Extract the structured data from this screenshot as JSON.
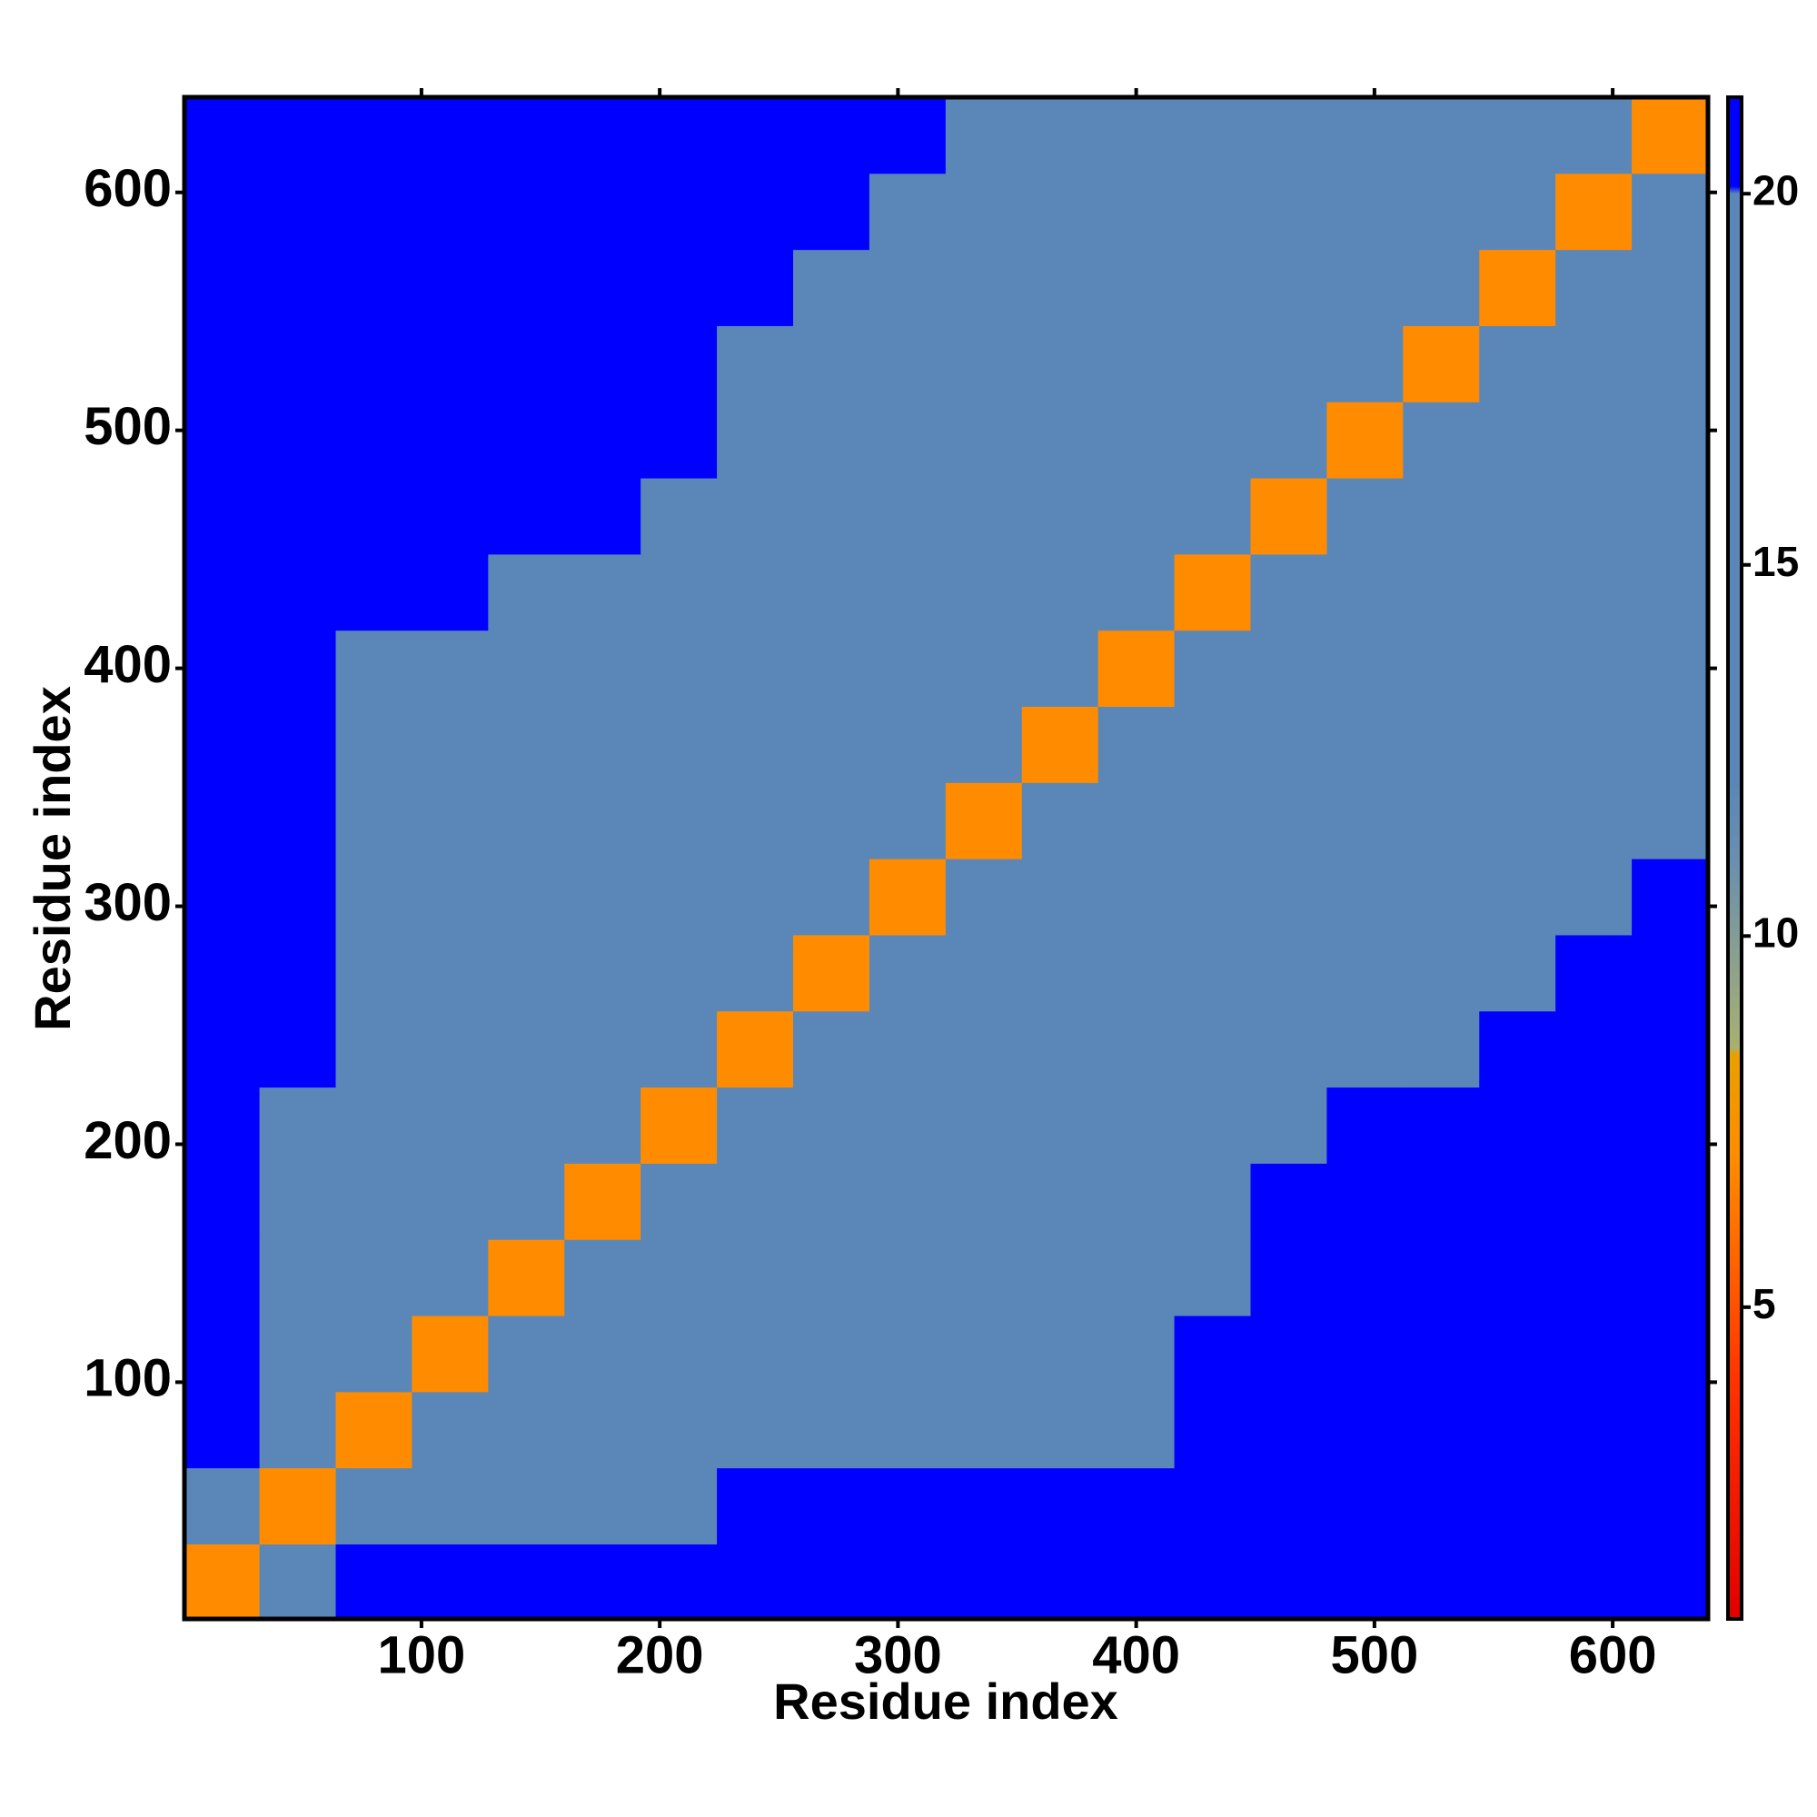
{
  "chart_data": {
    "type": "heatmap",
    "xlabel": "Residue index",
    "ylabel": "Residue index",
    "bins": [
      0,
      32,
      64,
      96,
      128,
      160,
      192,
      224,
      256,
      288,
      320,
      352,
      384,
      416,
      448,
      480,
      512,
      544,
      576,
      608,
      640
    ],
    "xlim": [
      0.5,
      640
    ],
    "ylim": [
      0.5,
      640
    ],
    "xticks": [
      100,
      200,
      300,
      400,
      500,
      600
    ],
    "yticks": [
      100,
      200,
      300,
      400,
      500,
      600
    ],
    "clim": [
      0.8,
      21.3
    ],
    "colorbar_ticks": [
      5,
      10,
      15,
      20
    ],
    "colorscale": [
      {
        "value": 0.8,
        "color": "#e00000"
      },
      {
        "value": 4,
        "color": "#ff3300"
      },
      {
        "value": 7,
        "color": "#ff8c00"
      },
      {
        "value": 8.4,
        "color": "#e8a000"
      },
      {
        "value": 8.5,
        "color": "#a8b070"
      },
      {
        "value": 11,
        "color": "#6a8fb0"
      },
      {
        "value": 12,
        "color": "#5b87b8"
      },
      {
        "value": 20,
        "color": "#5b87b8"
      },
      {
        "value": 20.1,
        "color": "#0000ff"
      },
      {
        "value": 21.3,
        "color": "#0000ff"
      }
    ],
    "values": [
      [
        7,
        12,
        21,
        21,
        21,
        21,
        21,
        21,
        21,
        21,
        21,
        21,
        21,
        21,
        21,
        21,
        21,
        21,
        21,
        21
      ],
      [
        12,
        7,
        12,
        15,
        16,
        17,
        17,
        21,
        21,
        21,
        21,
        21,
        21,
        21,
        21,
        21,
        21,
        21,
        21,
        21
      ],
      [
        21,
        12,
        7,
        12,
        15,
        16,
        17,
        17,
        18,
        17,
        18,
        18,
        19,
        21,
        21,
        21,
        21,
        21,
        21,
        21
      ],
      [
        21,
        15,
        12,
        7,
        12,
        15,
        15,
        16,
        17,
        17,
        18,
        18,
        19,
        21,
        21,
        21,
        21,
        21,
        21,
        21
      ],
      [
        21,
        16,
        15,
        12,
        7,
        12,
        15,
        15,
        16,
        17,
        17,
        18,
        18,
        19,
        21,
        21,
        21,
        21,
        21,
        21
      ],
      [
        21,
        17,
        16,
        15,
        12,
        7,
        12,
        14,
        15,
        16,
        17,
        17,
        18,
        18,
        21,
        21,
        21,
        21,
        21,
        21
      ],
      [
        21,
        17,
        17,
        15,
        15,
        12,
        7,
        12,
        15,
        16,
        16,
        17,
        17,
        18,
        19,
        21,
        21,
        21,
        21,
        21
      ],
      [
        21,
        21,
        17,
        16,
        15,
        14,
        12,
        7,
        12,
        14,
        15,
        16,
        16,
        17,
        17,
        18,
        19,
        21,
        21,
        21
      ],
      [
        21,
        21,
        18,
        17,
        16,
        15,
        15,
        12,
        7,
        12,
        14,
        15,
        16,
        16,
        17,
        17,
        18,
        19,
        21,
        21
      ],
      [
        21,
        21,
        17,
        17,
        17,
        16,
        16,
        14,
        12,
        7,
        12,
        15,
        15,
        16,
        16,
        17,
        17,
        18,
        19,
        21
      ],
      [
        21,
        21,
        18,
        18,
        17,
        17,
        16,
        15,
        14,
        12,
        7,
        12,
        14,
        15,
        16,
        16,
        17,
        17,
        18,
        19
      ],
      [
        21,
        21,
        18,
        18,
        18,
        17,
        17,
        16,
        15,
        15,
        12,
        7,
        12,
        14,
        16,
        16,
        17,
        17,
        18,
        18
      ],
      [
        21,
        21,
        19,
        19,
        18,
        18,
        17,
        16,
        16,
        15,
        14,
        12,
        7,
        12,
        14,
        15,
        16,
        17,
        17,
        18
      ],
      [
        21,
        21,
        21,
        21,
        19,
        18,
        18,
        17,
        16,
        16,
        15,
        14,
        12,
        7,
        12,
        14,
        15,
        16,
        17,
        17
      ],
      [
        21,
        21,
        21,
        21,
        21,
        21,
        19,
        17,
        17,
        16,
        16,
        16,
        14,
        12,
        7,
        12,
        14,
        15,
        16,
        16
      ],
      [
        21,
        21,
        21,
        21,
        21,
        21,
        21,
        18,
        17,
        17,
        16,
        16,
        15,
        14,
        12,
        7,
        12,
        14,
        15,
        16
      ],
      [
        21,
        21,
        21,
        21,
        21,
        21,
        21,
        19,
        18,
        17,
        17,
        17,
        16,
        15,
        14,
        12,
        7,
        12,
        14,
        15
      ],
      [
        21,
        21,
        21,
        21,
        21,
        21,
        21,
        21,
        19,
        18,
        17,
        17,
        17,
        16,
        15,
        14,
        12,
        7,
        12,
        14
      ],
      [
        21,
        21,
        21,
        21,
        21,
        21,
        21,
        21,
        21,
        19,
        18,
        18,
        17,
        17,
        16,
        15,
        14,
        12,
        7,
        12
      ],
      [
        21,
        21,
        21,
        21,
        21,
        21,
        21,
        21,
        21,
        21,
        19,
        18,
        18,
        17,
        16,
        16,
        15,
        14,
        12,
        7
      ]
    ]
  }
}
